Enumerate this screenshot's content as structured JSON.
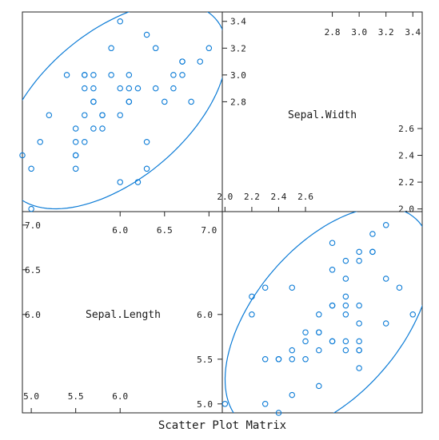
{
  "chart_data": {
    "type": "scatter",
    "title": "Scatter Plot Matrix",
    "variables": [
      "Sepal.Length",
      "Sepal.Width"
    ],
    "axes": {
      "Sepal.Length": {
        "range": [
          4.9,
          7.15
        ],
        "ticks_top": [
          "6.0",
          "6.5",
          "7.0"
        ],
        "ticks_bottom": [
          "5.0",
          "5.5",
          "6.0"
        ],
        "ticks_left": [
          "7.0",
          "6.5",
          "6.0"
        ],
        "ticks_right": [
          "6.0",
          "5.5",
          "5.0"
        ]
      },
      "Sepal.Width": {
        "range": [
          1.98,
          3.47
        ],
        "ticks_left": [
          "3.4",
          "3.2",
          "3.0",
          "2.8"
        ],
        "ticks_top": [
          "2.8",
          "3.0",
          "3.2",
          "3.4"
        ],
        "ticks_right": [
          "2.6",
          "2.4",
          "2.2",
          "2.0"
        ],
        "ticks_bottom": [
          "2.0",
          "2.2",
          "2.4",
          "2.6"
        ]
      }
    },
    "points": [
      {
        "sl": 7.0,
        "sw": 3.2
      },
      {
        "sl": 6.4,
        "sw": 3.2
      },
      {
        "sl": 6.9,
        "sw": 3.1
      },
      {
        "sl": 5.5,
        "sw": 2.3
      },
      {
        "sl": 6.5,
        "sw": 2.8
      },
      {
        "sl": 5.7,
        "sw": 2.8
      },
      {
        "sl": 6.3,
        "sw": 3.3
      },
      {
        "sl": 4.9,
        "sw": 2.4
      },
      {
        "sl": 6.6,
        "sw": 2.9
      },
      {
        "sl": 5.2,
        "sw": 2.7
      },
      {
        "sl": 5.0,
        "sw": 2.0
      },
      {
        "sl": 5.9,
        "sw": 3.0
      },
      {
        "sl": 6.0,
        "sw": 2.2
      },
      {
        "sl": 6.1,
        "sw": 2.9
      },
      {
        "sl": 5.6,
        "sw": 2.9
      },
      {
        "sl": 6.7,
        "sw": 3.1
      },
      {
        "sl": 5.6,
        "sw": 3.0
      },
      {
        "sl": 5.8,
        "sw": 2.7
      },
      {
        "sl": 6.2,
        "sw": 2.2
      },
      {
        "sl": 5.6,
        "sw": 2.5
      },
      {
        "sl": 5.9,
        "sw": 3.2
      },
      {
        "sl": 6.1,
        "sw": 2.8
      },
      {
        "sl": 6.3,
        "sw": 2.5
      },
      {
        "sl": 6.1,
        "sw": 2.8
      },
      {
        "sl": 6.4,
        "sw": 2.9
      },
      {
        "sl": 6.6,
        "sw": 3.0
      },
      {
        "sl": 6.8,
        "sw": 2.8
      },
      {
        "sl": 6.7,
        "sw": 3.0
      },
      {
        "sl": 6.0,
        "sw": 2.9
      },
      {
        "sl": 5.7,
        "sw": 2.6
      },
      {
        "sl": 5.5,
        "sw": 2.4
      },
      {
        "sl": 5.5,
        "sw": 2.4
      },
      {
        "sl": 5.8,
        "sw": 2.7
      },
      {
        "sl": 6.0,
        "sw": 2.7
      },
      {
        "sl": 5.4,
        "sw": 3.0
      },
      {
        "sl": 6.0,
        "sw": 3.4
      },
      {
        "sl": 6.7,
        "sw": 3.1
      },
      {
        "sl": 6.3,
        "sw": 2.3
      },
      {
        "sl": 5.6,
        "sw": 3.0
      },
      {
        "sl": 5.5,
        "sw": 2.5
      },
      {
        "sl": 5.5,
        "sw": 2.6
      },
      {
        "sl": 6.1,
        "sw": 3.0
      },
      {
        "sl": 5.8,
        "sw": 2.6
      },
      {
        "sl": 5.0,
        "sw": 2.3
      },
      {
        "sl": 5.6,
        "sw": 2.7
      },
      {
        "sl": 5.7,
        "sw": 3.0
      },
      {
        "sl": 5.7,
        "sw": 2.9
      },
      {
        "sl": 6.2,
        "sw": 2.9
      },
      {
        "sl": 5.1,
        "sw": 2.5
      },
      {
        "sl": 5.7,
        "sw": 2.8
      }
    ],
    "ellipse": {
      "center": {
        "sl": 5.936,
        "sw": 2.77
      },
      "sd": {
        "sl": 0.516,
        "sw": 0.314
      },
      "r": 0.526,
      "radius_sd": 2.45
    },
    "colors": {
      "points": "#0b7bd6",
      "ellipse": "#0b7bd6",
      "frame": "#222222"
    }
  }
}
